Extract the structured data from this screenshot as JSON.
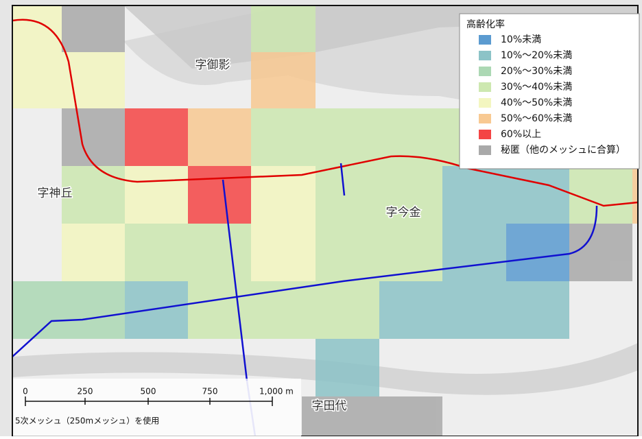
{
  "legend": {
    "title": "高齢化率",
    "items": [
      {
        "name": "10%未満",
        "color": "#5b9bd0"
      },
      {
        "name": "10%～20%未満",
        "color": "#8cc3c7"
      },
      {
        "name": "20%～30%未満",
        "color": "#acd8b4"
      },
      {
        "name": "30%～40%未満",
        "color": "#cde8b0"
      },
      {
        "name": "40%～50%未満",
        "color": "#f3f6c0"
      },
      {
        "name": "50%～60%未満",
        "color": "#f8c992"
      },
      {
        "name": "60%以上",
        "color": "#f44545"
      },
      {
        "name": "秘匿（他のメッシュに合算）",
        "color": "#a9a9a9"
      }
    ]
  },
  "places": [
    "字御影",
    "字神丘",
    "字今金",
    "字田代"
  ],
  "scale": {
    "labels": [
      "0",
      "250",
      "500",
      "750",
      "1,000 m"
    ],
    "note": "5次メッシュ（250mメッシュ）を使用"
  }
}
